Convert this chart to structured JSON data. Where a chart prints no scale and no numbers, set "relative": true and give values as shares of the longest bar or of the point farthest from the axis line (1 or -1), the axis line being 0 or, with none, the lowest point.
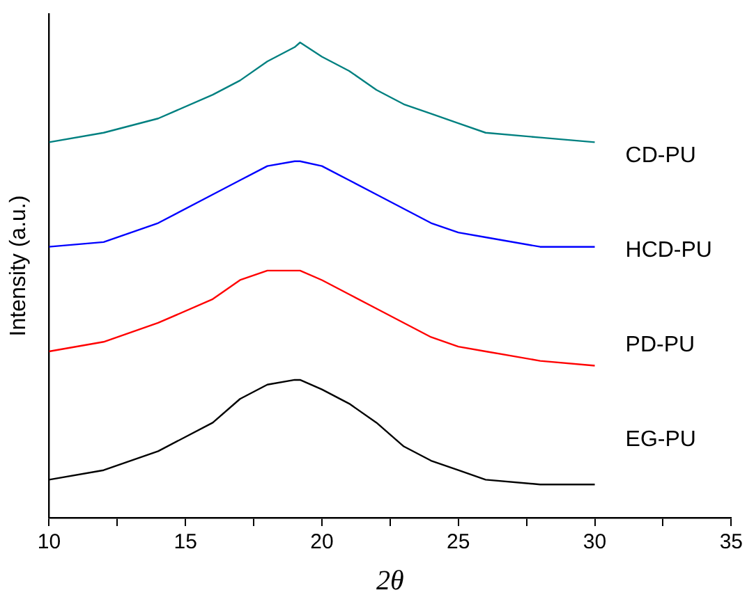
{
  "chart_data": {
    "type": "line",
    "xlabel": "2θ",
    "ylabel": "Intensity (a.u.)",
    "relative": true,
    "legend": false,
    "grid": false,
    "marker": "none",
    "line_style": "solid",
    "xlim": [
      10,
      35
    ],
    "xticks": [
      10,
      {
        "value": 12.5,
        "label": null
      },
      15,
      {
        "value": 17.5,
        "label": null
      },
      20,
      {
        "value": 22.5,
        "label": null
      },
      25,
      {
        "value": 27.5,
        "label": null
      },
      30,
      {
        "value": 32.5,
        "label": null
      },
      35
    ],
    "x": [
      10,
      12,
      14,
      16,
      17,
      18,
      19,
      19.2,
      20,
      21,
      22,
      23,
      24,
      25,
      26,
      28,
      30
    ],
    "series": [
      {
        "name": "CD-PU",
        "color": "#008080",
        "values": [
          0.79,
          0.81,
          0.84,
          0.89,
          0.92,
          0.96,
          0.99,
          1,
          0.97,
          0.94,
          0.9,
          0.87,
          0.85,
          0.83,
          0.81,
          0.8,
          0.79
        ]
      },
      {
        "name": "HCD-PU",
        "color": "#0000ff",
        "values": [
          0.57,
          0.58,
          0.62,
          0.68,
          0.71,
          0.74,
          0.75,
          0.75,
          0.74,
          0.71,
          0.68,
          0.65,
          0.62,
          0.6,
          0.59,
          0.57,
          0.57
        ]
      },
      {
        "name": "PD-PU",
        "color": "#ff0000",
        "values": [
          0.35,
          0.37,
          0.41,
          0.46,
          0.5,
          0.52,
          0.52,
          0.52,
          0.5,
          0.47,
          0.44,
          0.41,
          0.38,
          0.36,
          0.35,
          0.33,
          0.32
        ]
      },
      {
        "name": "EG-PU",
        "color": "#000000",
        "values": [
          0.08,
          0.1,
          0.14,
          0.2,
          0.25,
          0.28,
          0.29,
          0.29,
          0.27,
          0.24,
          0.2,
          0.15,
          0.12,
          0.1,
          0.08,
          0.07,
          0.07
        ]
      }
    ]
  }
}
